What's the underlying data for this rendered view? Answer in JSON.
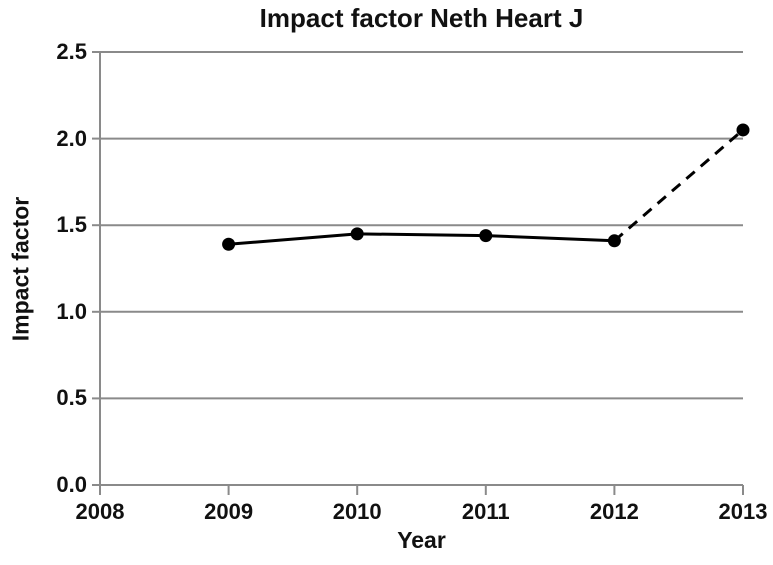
{
  "chart_data": {
    "type": "line",
    "title": "Impact factor Neth Heart J",
    "xlabel": "Year",
    "ylabel": "Impact factor",
    "x": [
      2009,
      2010,
      2011,
      2012,
      2013
    ],
    "values": [
      1.39,
      1.45,
      1.44,
      1.41,
      2.05
    ],
    "solid_segment_x": [
      2009,
      2012
    ],
    "dashed_segment_x": [
      2012,
      2013
    ],
    "xlim": [
      2008,
      2013
    ],
    "ylim": [
      0,
      2.5
    ],
    "xticks": [
      "2008",
      "2009",
      "2010",
      "2011",
      "2012",
      "2013"
    ],
    "yticks": [
      "0.0",
      "0.5",
      "1.0",
      "1.5",
      "2.0",
      "2.5"
    ],
    "grid": "horizontal-only",
    "legend": "none",
    "marker": "filled-circle",
    "line_color": "#000000",
    "axis_color": "#8a8a8a",
    "text_color": "#111111",
    "background_color": "#ffffff"
  }
}
